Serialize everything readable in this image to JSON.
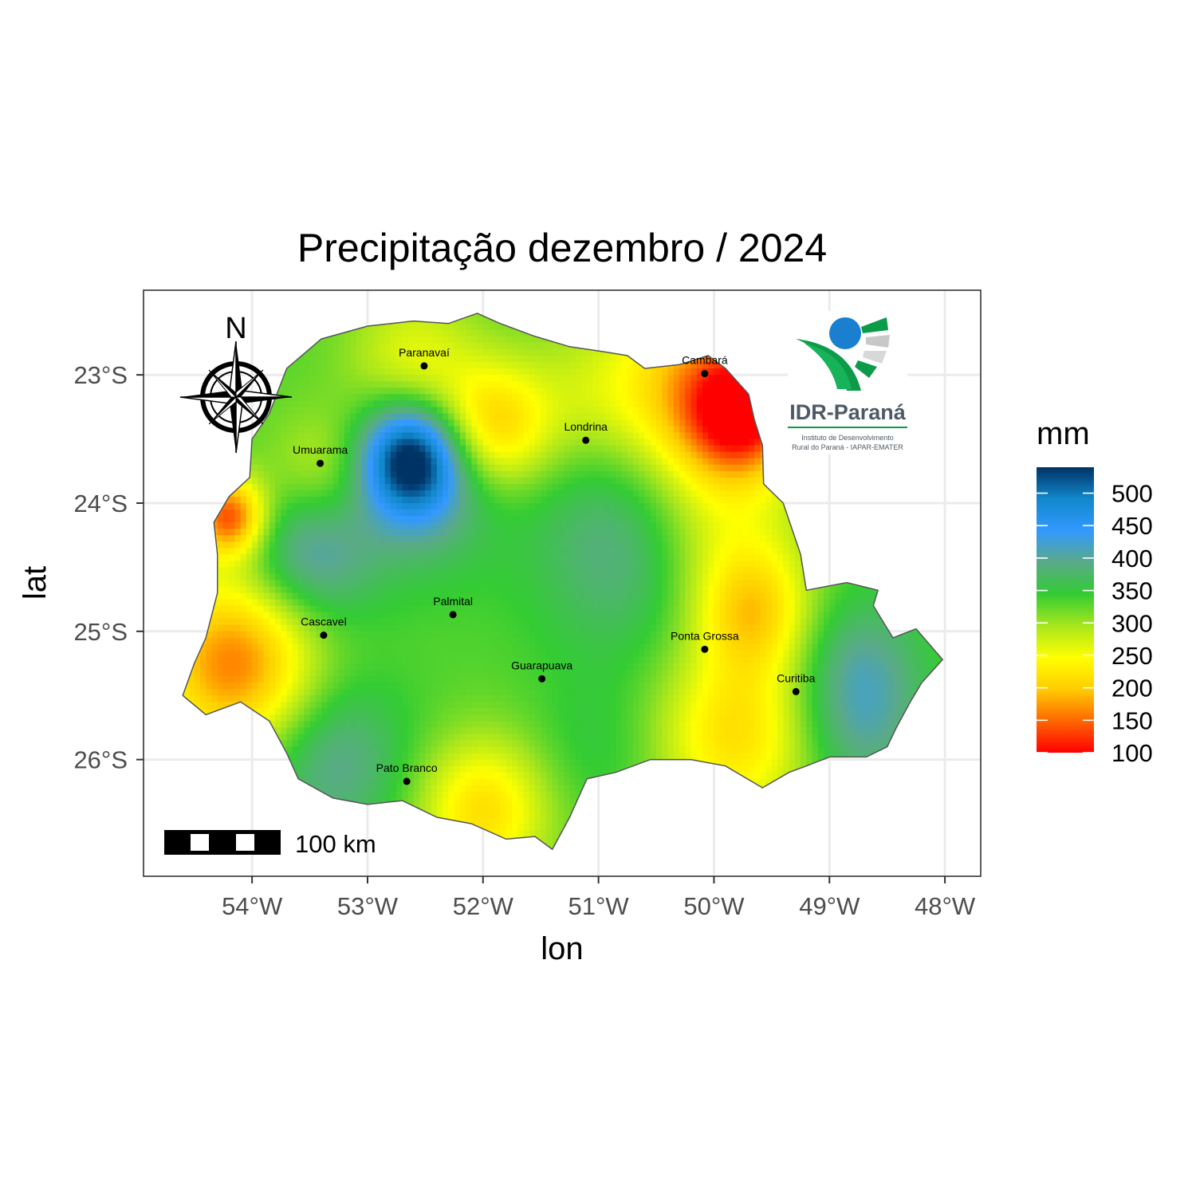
{
  "title": "Precipitação dezembro / 2024",
  "axes": {
    "x_title": "lon",
    "y_title": "lat",
    "x_ticks": [
      {
        "value": -54,
        "label": "54°W"
      },
      {
        "value": -53,
        "label": "53°W"
      },
      {
        "value": -52,
        "label": "52°W"
      },
      {
        "value": -51,
        "label": "51°W"
      },
      {
        "value": -50,
        "label": "50°W"
      },
      {
        "value": -49,
        "label": "49°W"
      },
      {
        "value": -48,
        "label": "48°W"
      }
    ],
    "y_ticks": [
      {
        "value": -23,
        "label": "23°S"
      },
      {
        "value": -24,
        "label": "24°S"
      },
      {
        "value": -25,
        "label": "25°S"
      },
      {
        "value": -26,
        "label": "26°S"
      }
    ],
    "xlim": [
      -54.94,
      -47.69
    ],
    "ylim": [
      -26.91,
      -22.34
    ],
    "grid": true
  },
  "legend": {
    "title": "mm",
    "ticks": [
      100,
      150,
      200,
      250,
      300,
      350,
      400,
      450,
      500
    ],
    "range": [
      100,
      540
    ],
    "colors": [
      "#ff0000",
      "#ff6600",
      "#ffcc00",
      "#ffff00",
      "#a8e61d",
      "#33cc33",
      "#5aaa88",
      "#3399ff",
      "#1188cc",
      "#003366"
    ],
    "placement": "right"
  },
  "cities": [
    {
      "name": "Paranavaí",
      "lon": -52.51,
      "lat": -22.93
    },
    {
      "name": "Cambará",
      "lon": -50.08,
      "lat": -22.99
    },
    {
      "name": "Londrina",
      "lon": -51.11,
      "lat": -23.51
    },
    {
      "name": "Umuarama",
      "lon": -53.41,
      "lat": -23.69
    },
    {
      "name": "Palmital",
      "lon": -52.26,
      "lat": -24.87
    },
    {
      "name": "Cascavel",
      "lon": -53.38,
      "lat": -25.03
    },
    {
      "name": "Ponta Grossa",
      "lon": -50.08,
      "lat": -25.14
    },
    {
      "name": "Guarapuava",
      "lon": -51.49,
      "lat": -25.37
    },
    {
      "name": "Curitiba",
      "lon": -49.29,
      "lat": -25.47
    },
    {
      "name": "Pato Branco",
      "lon": -52.66,
      "lat": -26.17
    }
  ],
  "compass": {
    "label": "N"
  },
  "scale_bar": {
    "label": "100 km"
  },
  "logo": {
    "name": "IDR-Paraná",
    "subtitle_line1": "Instituto de Desenvolvimento",
    "subtitle_line2": "Rural do Paraná - IAPAR-EMATER"
  },
  "chart_data": {
    "type": "heatmap",
    "title": "Precipitação dezembro / 2024",
    "xlabel": "lon",
    "ylabel": "lat",
    "unit": "mm",
    "value_range": [
      100,
      540
    ],
    "background_value": 330,
    "boundary": [
      [
        -52.05,
        -22.52
      ],
      [
        -51.85,
        -22.6
      ],
      [
        -51.55,
        -22.7
      ],
      [
        -51.25,
        -22.78
      ],
      [
        -50.95,
        -22.82
      ],
      [
        -50.75,
        -22.85
      ],
      [
        -50.6,
        -22.95
      ],
      [
        -50.3,
        -22.92
      ],
      [
        -50.05,
        -22.85
      ],
      [
        -49.9,
        -22.95
      ],
      [
        -49.7,
        -23.15
      ],
      [
        -49.65,
        -23.35
      ],
      [
        -49.58,
        -23.55
      ],
      [
        -49.57,
        -23.85
      ],
      [
        -49.4,
        -24.0
      ],
      [
        -49.25,
        -24.4
      ],
      [
        -49.2,
        -24.68
      ],
      [
        -48.85,
        -24.62
      ],
      [
        -48.58,
        -24.68
      ],
      [
        -48.62,
        -24.8
      ],
      [
        -48.45,
        -25.05
      ],
      [
        -48.25,
        -24.98
      ],
      [
        -48.02,
        -25.22
      ],
      [
        -48.2,
        -25.4
      ],
      [
        -48.3,
        -25.55
      ],
      [
        -48.42,
        -25.75
      ],
      [
        -48.5,
        -25.9
      ],
      [
        -48.68,
        -25.98
      ],
      [
        -49.0,
        -25.98
      ],
      [
        -49.2,
        -26.05
      ],
      [
        -49.35,
        -26.1
      ],
      [
        -49.58,
        -26.22
      ],
      [
        -49.9,
        -26.05
      ],
      [
        -50.2,
        -26.0
      ],
      [
        -50.55,
        -26.0
      ],
      [
        -50.85,
        -26.1
      ],
      [
        -51.1,
        -26.15
      ],
      [
        -51.25,
        -26.45
      ],
      [
        -51.4,
        -26.7
      ],
      [
        -51.55,
        -26.6
      ],
      [
        -51.8,
        -26.62
      ],
      [
        -52.1,
        -26.5
      ],
      [
        -52.4,
        -26.45
      ],
      [
        -52.7,
        -26.32
      ],
      [
        -53.0,
        -26.35
      ],
      [
        -53.3,
        -26.3
      ],
      [
        -53.6,
        -26.15
      ],
      [
        -53.7,
        -25.95
      ],
      [
        -53.85,
        -25.7
      ],
      [
        -54.1,
        -25.55
      ],
      [
        -54.4,
        -25.65
      ],
      [
        -54.6,
        -25.5
      ],
      [
        -54.5,
        -25.25
      ],
      [
        -54.4,
        -25.05
      ],
      [
        -54.3,
        -24.7
      ],
      [
        -54.3,
        -24.4
      ],
      [
        -54.33,
        -24.15
      ],
      [
        -54.2,
        -23.95
      ],
      [
        -54.02,
        -23.8
      ],
      [
        -54.0,
        -23.5
      ],
      [
        -53.85,
        -23.3
      ],
      [
        -53.7,
        -22.95
      ],
      [
        -53.4,
        -22.72
      ],
      [
        -53.0,
        -22.62
      ],
      [
        -52.6,
        -22.58
      ],
      [
        -52.3,
        -22.6
      ]
    ],
    "features": [
      {
        "lon": -52.63,
        "lat": -23.65,
        "value": 540,
        "radius": 0.3
      },
      {
        "lon": -52.5,
        "lat": -23.9,
        "value": 400,
        "radius": 0.45
      },
      {
        "lon": -53.5,
        "lat": -24.37,
        "value": 430,
        "radius": 0.4
      },
      {
        "lon": -50.65,
        "lat": -24.3,
        "value": 415,
        "radius": 0.6
      },
      {
        "lon": -51.9,
        "lat": -23.4,
        "value": 200,
        "radius": 0.35
      },
      {
        "lon": -50.05,
        "lat": -23.15,
        "value": 155,
        "radius": 0.55
      },
      {
        "lon": -49.75,
        "lat": -23.3,
        "value": 170,
        "radius": 0.3
      },
      {
        "lon": -54.2,
        "lat": -24.1,
        "value": 130,
        "radius": 0.22
      },
      {
        "lon": -54.15,
        "lat": -25.25,
        "value": 150,
        "radius": 0.5
      },
      {
        "lon": -53.3,
        "lat": -26.0,
        "value": 405,
        "radius": 0.45
      },
      {
        "lon": -52.0,
        "lat": -26.4,
        "value": 210,
        "radius": 0.4
      },
      {
        "lon": -49.8,
        "lat": -25.8,
        "value": 210,
        "radius": 0.5
      },
      {
        "lon": -49.65,
        "lat": -24.85,
        "value": 220,
        "radius": 0.35
      },
      {
        "lon": -48.75,
        "lat": -25.25,
        "value": 395,
        "radius": 0.4
      },
      {
        "lon": -48.75,
        "lat": -25.8,
        "value": 390,
        "radius": 0.4
      },
      {
        "lon": -51.0,
        "lat": -25.9,
        "value": 355,
        "radius": 0.4
      },
      {
        "lon": -52.6,
        "lat": -22.9,
        "value": 255,
        "radius": 0.4
      },
      {
        "lon": -53.4,
        "lat": -23.8,
        "value": 265,
        "radius": 0.35
      },
      {
        "lon": -50.0,
        "lat": -24.3,
        "value": 250,
        "radius": 0.5
      },
      {
        "lon": -51.1,
        "lat": -23.15,
        "value": 290,
        "radius": 0.4
      }
    ]
  }
}
